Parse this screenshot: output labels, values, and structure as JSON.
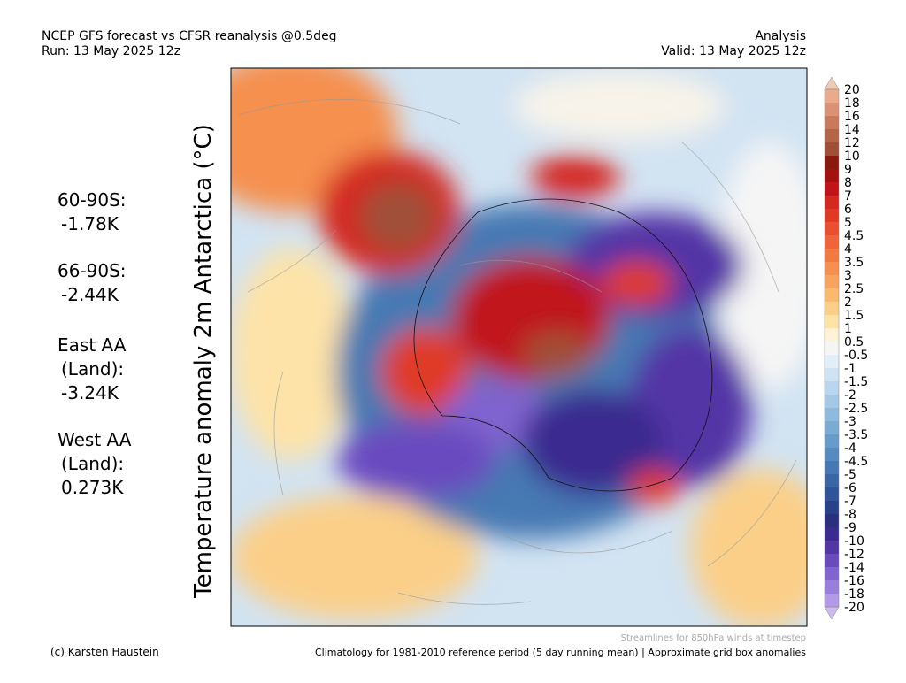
{
  "header": {
    "title": "NCEP GFS forecast vs CFSR reanalysis @0.5deg",
    "run": "Run: 13 May 2025 12z",
    "mode": "Analysis",
    "valid": "Valid: 13 May 2025 12z"
  },
  "map_title": "Temperature anomaly 2m Antarctica (°C)",
  "stats": [
    [
      "60-90S:",
      "-1.78K"
    ],
    [
      "66-90S:",
      "-2.44K"
    ],
    [
      "East AA",
      "(Land):",
      "-3.24K"
    ],
    [
      "West AA",
      "(Land):",
      "0.273K"
    ]
  ],
  "colorbar": {
    "labels": [
      "20",
      "18",
      "16",
      "14",
      "12",
      "10",
      "9",
      "8",
      "7",
      "6",
      "5",
      "4.5",
      "4",
      "3.5",
      "3",
      "2.5",
      "2",
      "1.5",
      "1",
      "0.5",
      "-0.5",
      "-1",
      "-1.5",
      "-2",
      "-2.5",
      "-3",
      "-3.5",
      "-4",
      "-4.5",
      "-5",
      "-6",
      "-7",
      "-8",
      "-9",
      "-10",
      "-12",
      "-14",
      "-16",
      "-18",
      "-20"
    ],
    "colors": [
      "#f5c9b0",
      "#e8ab8e",
      "#d99274",
      "#c97a5c",
      "#b66448",
      "#a04f38",
      "#8a1a10",
      "#a3120f",
      "#c0141a",
      "#d42820",
      "#e03a26",
      "#e85030",
      "#ef6438",
      "#f27a40",
      "#f59050",
      "#f7a55e",
      "#f9ba70",
      "#fbcf88",
      "#fde3a8",
      "#fef3d6",
      "#f5f5f5",
      "#e2eef8",
      "#cfe3f3",
      "#bbd6ec",
      "#a5c8e4",
      "#8fbadc",
      "#7aabd3",
      "#679cca",
      "#568bbf",
      "#4679b3",
      "#3a66a6",
      "#305399",
      "#28418c",
      "#2a2f80",
      "#3b2a8f",
      "#5236a6",
      "#6a4bbf",
      "#8064cf",
      "#987fdc",
      "#b19be6",
      "#cbbaf0"
    ]
  },
  "footer": {
    "streamlines": "Streamlines for 850hPa winds at timestep",
    "credit": "(c) Karsten Haustein",
    "note": "Climatology for 1981-2010 reference period (5 day running mean) | Approximate grid box anomalies"
  }
}
